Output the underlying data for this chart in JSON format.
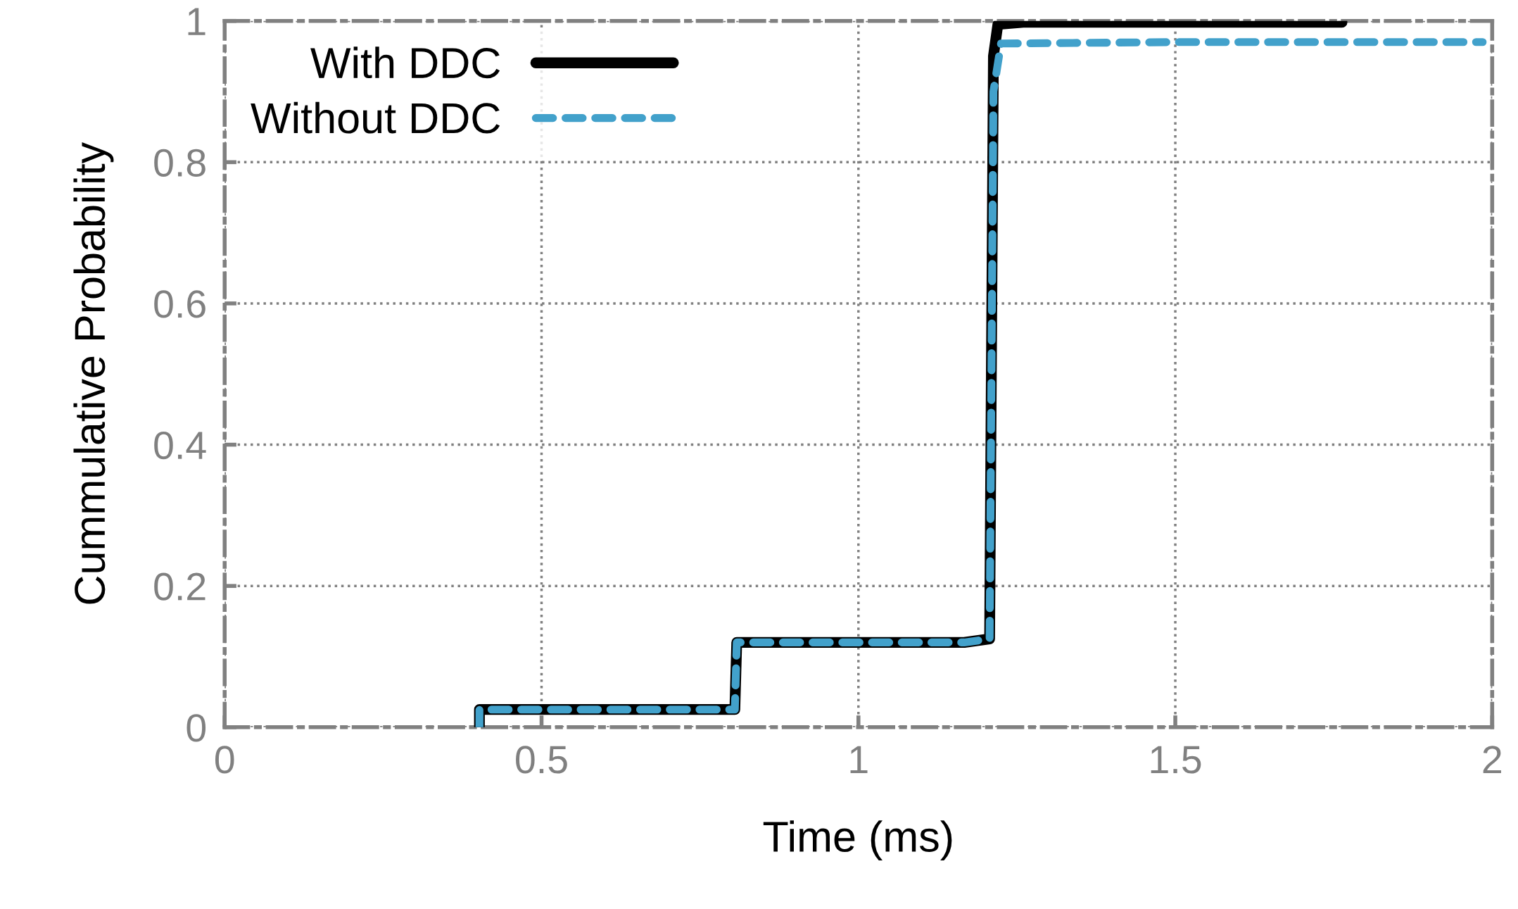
{
  "chart_data": {
    "type": "line",
    "xlabel": "Time (ms)",
    "ylabel": "Cummulative Probability",
    "xlim": [
      0,
      2
    ],
    "ylim": [
      0,
      1
    ],
    "xticks": [
      0,
      0.5,
      1,
      1.5,
      2
    ],
    "yticks": [
      0,
      0.2,
      0.4,
      0.6,
      0.8,
      1
    ],
    "grid": true,
    "legend": "top left",
    "marker": "none",
    "series": [
      {
        "name": "With DDC",
        "color": "#000000",
        "line_style": "solid",
        "x": [
          0.402,
          0.402,
          0.805,
          0.808,
          1.167,
          1.207,
          1.213,
          1.22,
          1.26,
          1.763
        ],
        "values": [
          0.0,
          0.025,
          0.025,
          0.12,
          0.12,
          0.125,
          0.95,
          0.995,
          0.998,
          0.998
        ]
      },
      {
        "name": "Without DDC",
        "color": "#42a1cb",
        "line_style": "dashed",
        "x": [
          0.402,
          0.402,
          0.805,
          0.808,
          1.167,
          1.207,
          1.213,
          1.225,
          1.5,
          1.985
        ],
        "values": [
          0.0,
          0.025,
          0.025,
          0.12,
          0.12,
          0.125,
          0.9,
          0.968,
          0.97,
          0.97
        ]
      }
    ]
  }
}
